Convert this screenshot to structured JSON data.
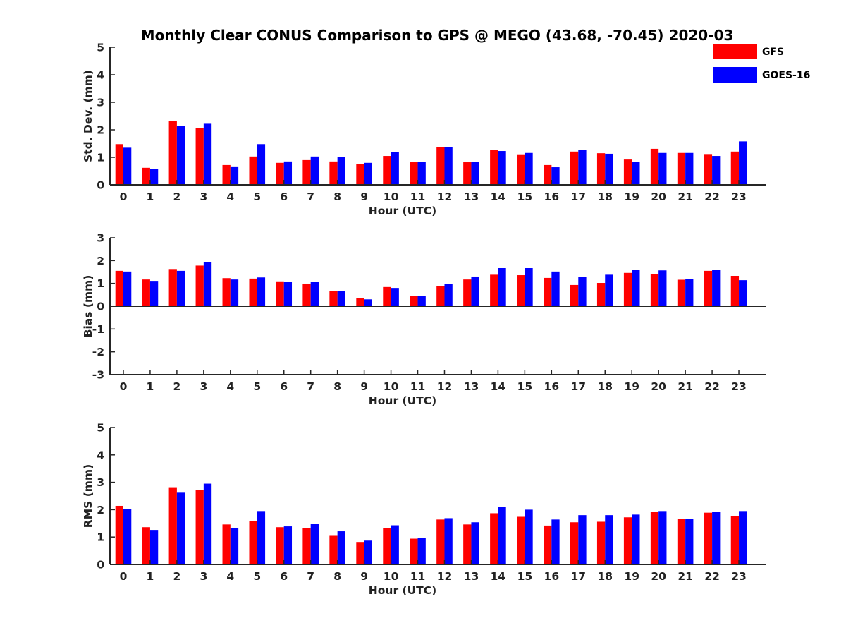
{
  "title": "Monthly Clear CONUS Comparison to GPS @ MEGO (43.68, -70.45) 2020-03",
  "colors": {
    "GFS": "#ff0000",
    "GOES-16": "#0000ff"
  },
  "legend": [
    {
      "name": "GFS",
      "color": "#ff0000"
    },
    {
      "name": "GOES-16",
      "color": "#0000ff"
    }
  ],
  "chart_data": [
    {
      "type": "bar",
      "ylabel": "Std. Dev. (mm)",
      "xlabel": "Hour (UTC)",
      "ylim": [
        0,
        5
      ],
      "yticks": [
        0,
        1,
        2,
        3,
        4,
        5
      ],
      "categories": [
        "0",
        "1",
        "2",
        "3",
        "4",
        "5",
        "6",
        "7",
        "8",
        "9",
        "10",
        "11",
        "12",
        "13",
        "14",
        "15",
        "16",
        "17",
        "18",
        "19",
        "20",
        "21",
        "22",
        "23"
      ],
      "series": [
        {
          "name": "GFS",
          "values": [
            1.48,
            0.62,
            2.33,
            2.07,
            0.72,
            1.03,
            0.8,
            0.9,
            0.85,
            0.75,
            1.05,
            0.82,
            1.38,
            0.82,
            1.27,
            1.11,
            0.72,
            1.21,
            1.15,
            0.92,
            1.31,
            1.16,
            1.12,
            1.21
          ]
        },
        {
          "name": "GOES-16",
          "values": [
            1.35,
            0.58,
            2.13,
            2.22,
            0.67,
            1.48,
            0.85,
            1.03,
            1.0,
            0.8,
            1.18,
            0.84,
            1.38,
            0.84,
            1.23,
            1.16,
            0.64,
            1.26,
            1.13,
            0.84,
            1.16,
            1.16,
            1.05,
            1.58
          ]
        }
      ]
    },
    {
      "type": "bar",
      "ylabel": "Bias (mm)",
      "xlabel": "Hour (UTC)",
      "ylim": [
        -3,
        3
      ],
      "yticks": [
        -3,
        -2,
        -1,
        0,
        1,
        2,
        3
      ],
      "categories": [
        "0",
        "1",
        "2",
        "3",
        "4",
        "5",
        "6",
        "7",
        "8",
        "9",
        "10",
        "11",
        "12",
        "13",
        "14",
        "15",
        "16",
        "17",
        "18",
        "19",
        "20",
        "21",
        "22",
        "23"
      ],
      "series": [
        {
          "name": "GFS",
          "values": [
            1.55,
            1.17,
            1.63,
            1.78,
            1.23,
            1.21,
            1.09,
            0.99,
            0.68,
            0.34,
            0.84,
            0.46,
            0.89,
            1.17,
            1.38,
            1.36,
            1.24,
            0.93,
            1.02,
            1.46,
            1.42,
            1.16,
            1.55,
            1.33
          ]
        },
        {
          "name": "GOES-16",
          "values": [
            1.52,
            1.11,
            1.55,
            1.92,
            1.17,
            1.26,
            1.08,
            1.08,
            0.67,
            0.3,
            0.8,
            0.46,
            0.96,
            1.3,
            1.67,
            1.67,
            1.52,
            1.27,
            1.38,
            1.6,
            1.57,
            1.2,
            1.6,
            1.14
          ]
        }
      ]
    },
    {
      "type": "bar",
      "ylabel": "RMS (mm)",
      "xlabel": "Hour (UTC)",
      "ylim": [
        0,
        5
      ],
      "yticks": [
        0,
        1,
        2,
        3,
        4,
        5
      ],
      "categories": [
        "0",
        "1",
        "2",
        "3",
        "4",
        "5",
        "6",
        "7",
        "8",
        "9",
        "10",
        "11",
        "12",
        "13",
        "14",
        "15",
        "16",
        "17",
        "18",
        "19",
        "20",
        "21",
        "22",
        "23"
      ],
      "series": [
        {
          "name": "GFS",
          "values": [
            2.14,
            1.36,
            2.82,
            2.72,
            1.46,
            1.59,
            1.36,
            1.33,
            1.07,
            0.82,
            1.33,
            0.94,
            1.64,
            1.46,
            1.87,
            1.74,
            1.42,
            1.54,
            1.56,
            1.72,
            1.92,
            1.66,
            1.89,
            1.77
          ]
        },
        {
          "name": "GOES-16",
          "values": [
            2.02,
            1.26,
            2.62,
            2.95,
            1.33,
            1.95,
            1.39,
            1.49,
            1.21,
            0.87,
            1.43,
            0.97,
            1.69,
            1.54,
            2.09,
            2.0,
            1.64,
            1.8,
            1.8,
            1.82,
            1.95,
            1.66,
            1.92,
            1.95
          ]
        }
      ]
    }
  ]
}
